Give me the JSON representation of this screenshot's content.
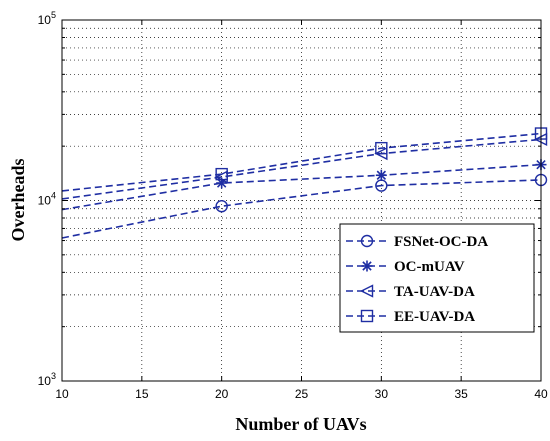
{
  "chart_data": {
    "type": "line",
    "title": "",
    "xlabel": "Number of UAVs",
    "ylabel": "Overheads",
    "x": [
      10,
      20,
      30,
      40
    ],
    "xlim": [
      10,
      40
    ],
    "ylim": [
      1000,
      100000
    ],
    "y_scale": "log",
    "grid": true,
    "legend_position": "lower-right",
    "x_ticks": [
      "10",
      "15",
      "20",
      "25",
      "30",
      "35",
      "40"
    ],
    "y_ticks": [
      {
        "base": "10",
        "exp": "3",
        "value": 1000
      },
      {
        "base": "10",
        "exp": "4",
        "value": 10000
      },
      {
        "base": "10",
        "exp": "5",
        "value": 100000
      }
    ],
    "series": [
      {
        "name": "FSNet-OC-DA",
        "marker": "circle",
        "color": "#1f2ea3",
        "values": [
          6200,
          9300,
          12100,
          13000
        ]
      },
      {
        "name": "OC-mUAV",
        "marker": "asterisk",
        "color": "#1f2ea3",
        "values": [
          8900,
          12500,
          13800,
          15800
        ]
      },
      {
        "name": "TA-UAV-DA",
        "marker": "triangle-left",
        "color": "#1f2ea3",
        "values": [
          10200,
          13500,
          18200,
          21800
        ]
      },
      {
        "name": "EE-UAV-DA",
        "marker": "square",
        "color": "#1f2ea3",
        "values": [
          11300,
          14000,
          19500,
          23500
        ]
      }
    ]
  }
}
